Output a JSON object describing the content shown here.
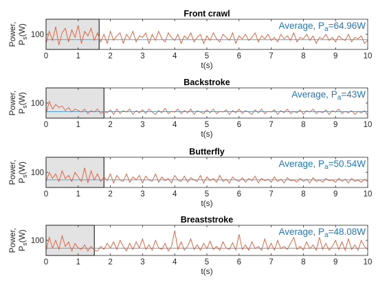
{
  "chart_data": [
    {
      "type": "line",
      "title": "Front crawl",
      "xlabel": "t(s)",
      "ylabel": "Power, P_s(W)",
      "xlim": [
        0,
        10
      ],
      "ylim": [
        0,
        200
      ],
      "xticks": [
        "0",
        "1",
        "2",
        "3",
        "4",
        "5",
        "6",
        "7",
        "8",
        "9",
        "10"
      ],
      "yticks": [
        "100"
      ],
      "highlight_x": [
        0,
        1.65
      ],
      "average": 64.96,
      "annotation": "Average, P",
      "annotation_sub": "a",
      "annotation_value": "=64.96W",
      "series": [
        {
          "x": [
            0,
            0.1,
            0.2,
            0.3,
            0.4,
            0.5,
            0.6,
            0.7,
            0.8,
            0.9,
            1.0,
            1.1,
            1.2,
            1.3,
            1.4,
            1.5,
            1.6,
            1.7,
            1.8,
            1.9,
            2.0,
            2.1,
            2.2,
            2.3,
            2.4,
            2.5,
            2.6,
            2.7,
            2.8,
            2.9,
            3.0,
            3.1,
            3.2,
            3.3,
            3.4,
            3.5,
            3.6,
            3.7,
            3.8,
            3.9,
            4.0,
            4.1,
            4.2,
            4.3,
            4.4,
            4.5,
            4.6,
            4.7,
            4.8,
            4.9,
            5.0,
            5.1,
            5.2,
            5.3,
            5.4,
            5.5,
            5.6,
            5.7,
            5.8,
            5.9,
            6.0,
            6.1,
            6.2,
            6.3,
            6.4,
            6.5,
            6.6,
            6.7,
            6.8,
            6.9,
            7.0,
            7.1,
            7.2,
            7.3,
            7.4,
            7.5,
            7.6,
            7.7,
            7.8,
            7.9,
            8.0,
            8.1,
            8.2,
            8.3,
            8.4,
            8.5,
            8.6,
            8.7,
            8.8,
            8.9,
            9.0,
            9.1,
            9.2,
            9.3,
            9.4,
            9.5,
            9.6,
            9.7,
            9.8,
            9.9,
            10.0
          ],
          "values": [
            40,
            120,
            60,
            150,
            30,
            110,
            140,
            50,
            130,
            80,
            160,
            40,
            120,
            90,
            140,
            60,
            110,
            50,
            100,
            40,
            120,
            60,
            90,
            110,
            40,
            100,
            70,
            120,
            50,
            90,
            80,
            110,
            40,
            100,
            60,
            120,
            70,
            50,
            110,
            80,
            60,
            100,
            40,
            90,
            70,
            110,
            50,
            80,
            100,
            40,
            90,
            60,
            110,
            70,
            50,
            100,
            80,
            60,
            110,
            40,
            90,
            70,
            100,
            60,
            80,
            110,
            50,
            90,
            70,
            100,
            60,
            80,
            50,
            100,
            70,
            90,
            60,
            110,
            50,
            80,
            70,
            100,
            60,
            90,
            40,
            80,
            70,
            100,
            60,
            80,
            50,
            90,
            70,
            60,
            100,
            50,
            80,
            70,
            90,
            40,
            60
          ]
        }
      ]
    },
    {
      "type": "line",
      "title": "Backstroke",
      "xlabel": "t(s)",
      "ylabel": "Power, P_s(W)",
      "xlim": [
        0,
        10
      ],
      "ylim": [
        0,
        200
      ],
      "xticks": [
        "0",
        "1",
        "2",
        "3",
        "4",
        "5",
        "6",
        "7",
        "8",
        "9",
        "10"
      ],
      "yticks": [
        "100"
      ],
      "highlight_x": [
        0,
        1.8
      ],
      "average": 43,
      "annotation": "Average, P",
      "annotation_sub": "a",
      "annotation_value": "=43W",
      "series": [
        {
          "x": [
            0,
            0.1,
            0.2,
            0.3,
            0.4,
            0.5,
            0.6,
            0.7,
            0.8,
            0.9,
            1.0,
            1.1,
            1.2,
            1.3,
            1.4,
            1.5,
            1.6,
            1.7,
            1.8,
            1.9,
            2.0,
            2.1,
            2.2,
            2.3,
            2.4,
            2.5,
            2.6,
            2.7,
            2.8,
            2.9,
            3.0,
            3.1,
            3.2,
            3.3,
            3.4,
            3.5,
            3.6,
            3.7,
            3.8,
            3.9,
            4.0,
            4.1,
            4.2,
            4.3,
            4.4,
            4.5,
            4.6,
            4.7,
            4.8,
            4.9,
            5.0,
            5.1,
            5.2,
            5.3,
            5.4,
            5.5,
            5.6,
            5.7,
            5.8,
            5.9,
            6.0,
            6.1,
            6.2,
            6.3,
            6.4,
            6.5,
            6.6,
            6.7,
            6.8,
            6.9,
            7.0,
            7.1,
            7.2,
            7.3,
            7.4,
            7.5,
            7.6,
            7.7,
            7.8,
            7.9,
            8.0,
            8.1,
            8.2,
            8.3,
            8.4,
            8.5,
            8.6,
            8.7,
            8.8,
            8.9,
            9.0,
            9.1,
            9.2,
            9.3,
            9.4,
            9.5,
            9.6,
            9.7,
            9.8,
            9.9,
            10.0
          ],
          "values": [
            30,
            110,
            60,
            90,
            70,
            80,
            50,
            70,
            40,
            60,
            50,
            40,
            60,
            30,
            50,
            40,
            60,
            30,
            45,
            35,
            55,
            25,
            60,
            30,
            50,
            40,
            60,
            25,
            50,
            35,
            55,
            30,
            60,
            40,
            25,
            50,
            35,
            65,
            30,
            45,
            40,
            60,
            30,
            50,
            35,
            60,
            25,
            50,
            40,
            30,
            55,
            35,
            60,
            30,
            45,
            40,
            55,
            25,
            50,
            35,
            60,
            30,
            50,
            40,
            25,
            55,
            35,
            60,
            30,
            45,
            40,
            55,
            25,
            50,
            35,
            60,
            30,
            45,
            35,
            55,
            25,
            50,
            40,
            60,
            30,
            45,
            35,
            55,
            25,
            50,
            40,
            60,
            30,
            45,
            35,
            50,
            25,
            45,
            35,
            50,
            20
          ]
        }
      ]
    },
    {
      "type": "line",
      "title": "Butterfly",
      "xlabel": "t(s)",
      "ylabel": "Power, P_s(W)",
      "xlim": [
        0,
        10
      ],
      "ylim": [
        0,
        200
      ],
      "xticks": [
        "0",
        "1",
        "2",
        "3",
        "4",
        "5",
        "6",
        "7",
        "8",
        "9",
        "10"
      ],
      "yticks": [
        "100"
      ],
      "highlight_x": [
        0,
        1.8
      ],
      "average": 50.54,
      "annotation": "Average, P",
      "annotation_sub": "a",
      "annotation_value": "=50.54W",
      "series": [
        {
          "x": [
            0,
            0.1,
            0.2,
            0.3,
            0.4,
            0.5,
            0.6,
            0.7,
            0.8,
            0.9,
            1.0,
            1.1,
            1.2,
            1.3,
            1.4,
            1.5,
            1.6,
            1.7,
            1.8,
            1.9,
            2.0,
            2.1,
            2.2,
            2.3,
            2.4,
            2.5,
            2.6,
            2.7,
            2.8,
            2.9,
            3.0,
            3.1,
            3.2,
            3.3,
            3.4,
            3.5,
            3.6,
            3.7,
            3.8,
            3.9,
            4.0,
            4.1,
            4.2,
            4.3,
            4.4,
            4.5,
            4.6,
            4.7,
            4.8,
            4.9,
            5.0,
            5.1,
            5.2,
            5.3,
            5.4,
            5.5,
            5.6,
            5.7,
            5.8,
            5.9,
            6.0,
            6.1,
            6.2,
            6.3,
            6.4,
            6.5,
            6.6,
            6.7,
            6.8,
            6.9,
            7.0,
            7.1,
            7.2,
            7.3,
            7.4,
            7.5,
            7.6,
            7.7,
            7.8,
            7.9,
            8.0,
            8.1,
            8.2,
            8.3,
            8.4,
            8.5,
            8.6,
            8.7,
            8.8,
            8.9,
            9.0,
            9.1,
            9.2,
            9.3,
            9.4,
            9.5,
            9.6,
            9.7,
            9.8,
            9.9,
            10.0
          ],
          "values": [
            40,
            100,
            60,
            90,
            40,
            110,
            60,
            80,
            40,
            100,
            70,
            40,
            130,
            30,
            110,
            50,
            90,
            40,
            70,
            45,
            90,
            30,
            80,
            50,
            40,
            90,
            35,
            70,
            50,
            80,
            30,
            75,
            50,
            40,
            90,
            35,
            70,
            45,
            60,
            30,
            80,
            50,
            40,
            75,
            35,
            65,
            50,
            40,
            80,
            30,
            70,
            45,
            60,
            35,
            80,
            40,
            55,
            30,
            70,
            50,
            40,
            65,
            35,
            60,
            45,
            75,
            30,
            60,
            45,
            55,
            35,
            70,
            40,
            55,
            30,
            65,
            45,
            50,
            35,
            60,
            40,
            55,
            30,
            65,
            40,
            50,
            35,
            60,
            45,
            50,
            35,
            60,
            40,
            55,
            30,
            60,
            40,
            50,
            35,
            55,
            40
          ]
        }
      ]
    },
    {
      "type": "line",
      "title": "Breaststroke",
      "xlabel": "t(s)",
      "ylabel": "Power, P_s(W)",
      "xlim": [
        0,
        10
      ],
      "ylim": [
        0,
        200
      ],
      "xticks": [
        "0",
        "1",
        "2",
        "3",
        "4",
        "5",
        "6",
        "7",
        "8",
        "9",
        "10"
      ],
      "yticks": [
        "100"
      ],
      "highlight_x": [
        0,
        1.5
      ],
      "average": 48.08,
      "annotation": "Average, P",
      "annotation_sub": "a",
      "annotation_value": "=48.08W",
      "series": [
        {
          "x": [
            0,
            0.1,
            0.2,
            0.3,
            0.4,
            0.5,
            0.6,
            0.7,
            0.8,
            0.9,
            1.0,
            1.1,
            1.2,
            1.3,
            1.4,
            1.5,
            1.6,
            1.7,
            1.8,
            1.9,
            2.0,
            2.1,
            2.2,
            2.3,
            2.4,
            2.5,
            2.6,
            2.7,
            2.8,
            2.9,
            3.0,
            3.1,
            3.2,
            3.3,
            3.4,
            3.5,
            3.6,
            3.7,
            3.8,
            3.9,
            4.0,
            4.1,
            4.2,
            4.3,
            4.4,
            4.5,
            4.6,
            4.7,
            4.8,
            4.9,
            5.0,
            5.1,
            5.2,
            5.3,
            5.4,
            5.5,
            5.6,
            5.7,
            5.8,
            5.9,
            6.0,
            6.1,
            6.2,
            6.3,
            6.4,
            6.5,
            6.6,
            6.7,
            6.8,
            6.9,
            7.0,
            7.1,
            7.2,
            7.3,
            7.4,
            7.5,
            7.6,
            7.7,
            7.8,
            7.9,
            8.0,
            8.1,
            8.2,
            8.3,
            8.4,
            8.5,
            8.6,
            8.7,
            8.8,
            8.9,
            9.0,
            9.1,
            9.2,
            9.3,
            9.4,
            9.5,
            9.6,
            9.7,
            9.8,
            9.9,
            10.0
          ],
          "values": [
            30,
            120,
            50,
            100,
            40,
            130,
            60,
            90,
            30,
            80,
            50,
            40,
            70,
            30,
            60,
            35,
            30,
            60,
            40,
            80,
            50,
            90,
            40,
            100,
            60,
            30,
            80,
            40,
            90,
            50,
            110,
            40,
            70,
            35,
            100,
            50,
            40,
            80,
            30,
            60,
            165,
            40,
            90,
            35,
            60,
            110,
            40,
            70,
            35,
            80,
            45,
            95,
            40,
            60,
            35,
            90,
            50,
            40,
            85,
            35,
            140,
            40,
            70,
            35,
            90,
            45,
            60,
            35,
            110,
            40,
            80,
            35,
            100,
            45,
            60,
            40,
            80,
            120,
            40,
            60,
            35,
            90,
            45,
            70,
            35,
            120,
            40,
            80,
            35,
            60,
            100,
            40,
            90,
            35,
            110,
            40,
            70,
            35,
            100,
            60,
            40
          ]
        }
      ]
    }
  ]
}
